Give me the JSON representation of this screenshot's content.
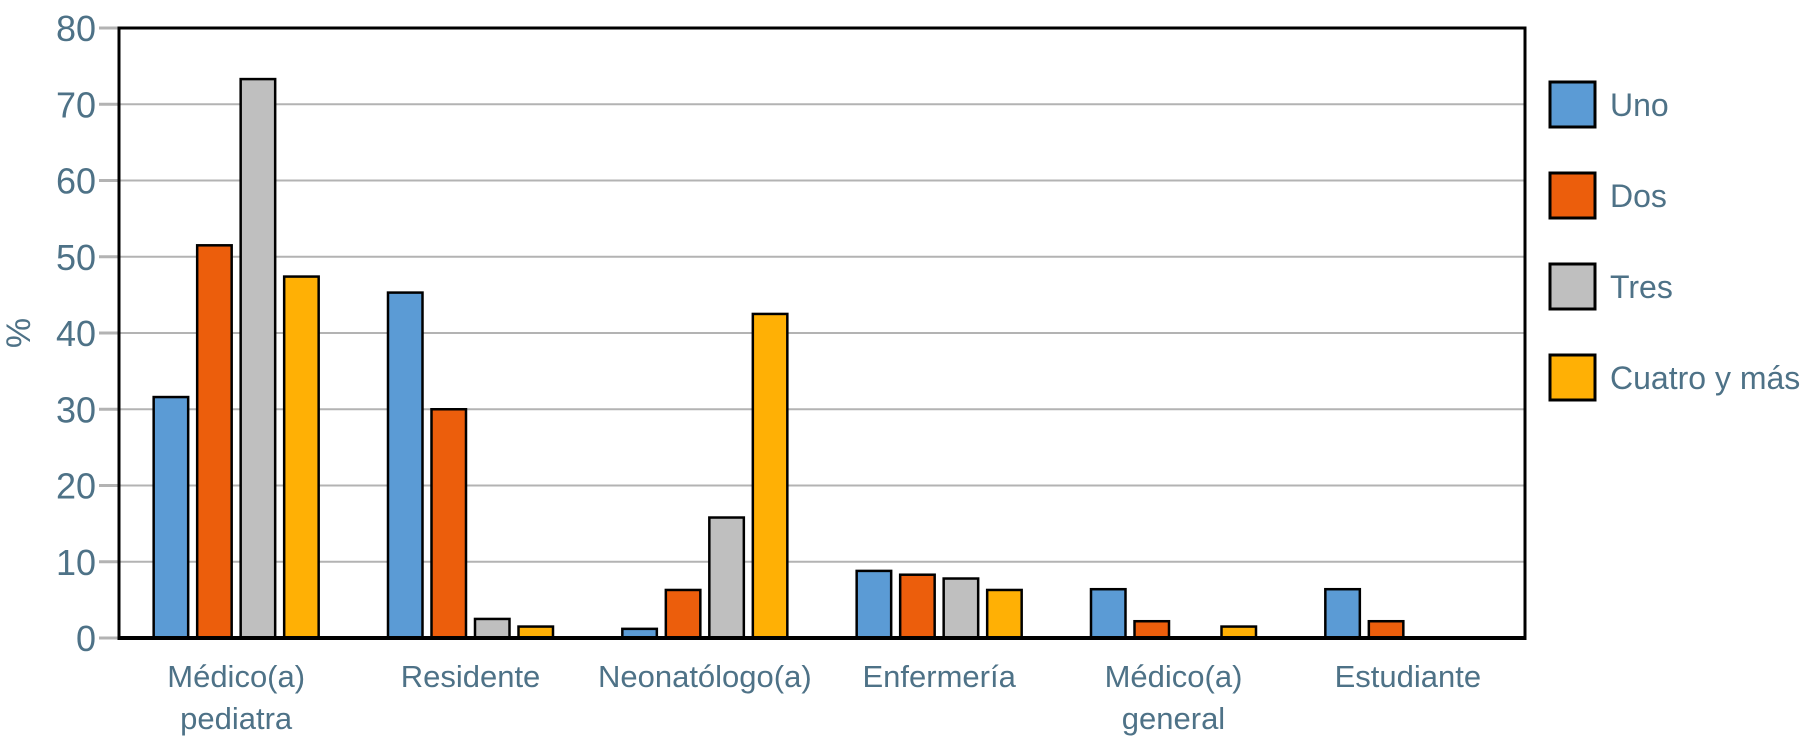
{
  "chart_data": {
    "type": "bar",
    "title": "",
    "xlabel": "",
    "ylabel": "%",
    "ylim": [
      0,
      80
    ],
    "ytick_interval": 10,
    "yticks": [
      0,
      10,
      20,
      30,
      40,
      50,
      60,
      70,
      80
    ],
    "grid": "horizontal",
    "legend_position": "right",
    "categories": [
      {
        "label": "Médico(a) pediatra",
        "lines": [
          "Médico(a)",
          "pediatra"
        ]
      },
      {
        "label": "Residente",
        "lines": [
          "Residente"
        ]
      },
      {
        "label": "Neonatólogo(a)",
        "lines": [
          "Neonatólogo(a)"
        ]
      },
      {
        "label": "Enfermería",
        "lines": [
          "Enfermería"
        ]
      },
      {
        "label": "Médico(a) general",
        "lines": [
          "Médico(a)",
          "general"
        ]
      },
      {
        "label": "Estudiante",
        "lines": [
          "Estudiante"
        ]
      }
    ],
    "series": [
      {
        "name": "Uno",
        "color": "#5b9bd5",
        "values": [
          31.6,
          45.3,
          1.2,
          8.8,
          6.4,
          6.4
        ]
      },
      {
        "name": "Dos",
        "color": "#ec5e0c",
        "values": [
          51.5,
          30.0,
          6.3,
          8.3,
          2.2,
          2.2
        ]
      },
      {
        "name": "Tres",
        "color": "#bfbfbf",
        "values": [
          73.3,
          2.5,
          15.8,
          7.8,
          0,
          0
        ]
      },
      {
        "name": "Cuatro y más",
        "color": "#ffb005",
        "values": [
          47.4,
          1.5,
          42.5,
          6.3,
          1.5,
          0
        ]
      }
    ],
    "colors": {
      "axis_text": "#4e7287",
      "gridline": "#b3b3b3",
      "plot_border": "#000000",
      "bar_edge": "#000000",
      "background": "#ffffff"
    }
  }
}
